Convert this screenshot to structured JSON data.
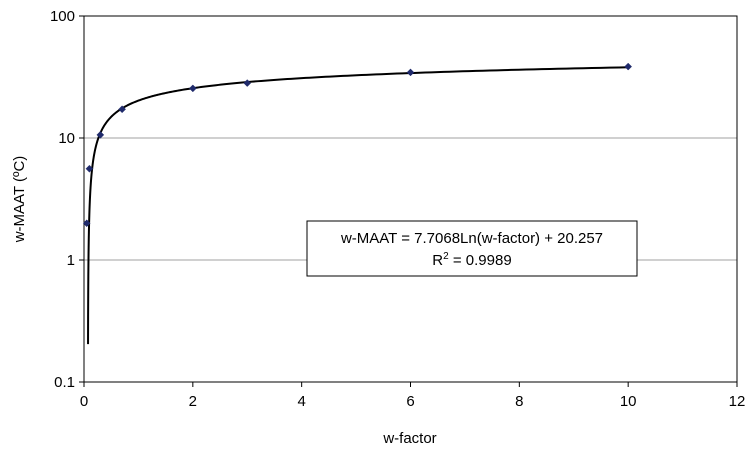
{
  "chart_data": {
    "type": "scatter",
    "scale_y": "log",
    "xlabel": "w-factor",
    "ylabel": "w-MAAT (ºC)",
    "xlim": [
      0,
      12
    ],
    "ylim": [
      0.1,
      100
    ],
    "x_ticks": [
      "0",
      "2",
      "4",
      "6",
      "8",
      "10",
      "12"
    ],
    "y_ticks": [
      "0.1",
      "1",
      "10",
      "100"
    ],
    "grid": "horizontal major gridlines",
    "points": [
      {
        "x": 0.05,
        "y": 2.0
      },
      {
        "x": 0.1,
        "y": 5.6
      },
      {
        "x": 0.3,
        "y": 10.6
      },
      {
        "x": 0.7,
        "y": 17.2
      },
      {
        "x": 2.0,
        "y": 25.5
      },
      {
        "x": 3.0,
        "y": 28.2
      },
      {
        "x": 6.0,
        "y": 34.5
      },
      {
        "x": 10.0,
        "y": 38.5
      }
    ],
    "trendline": {
      "type": "logarithmic",
      "a": 7.7068,
      "b": 20.257,
      "x_start": 0.01,
      "x_end": 10.0
    },
    "annotation": {
      "line1": "w-MAAT = 7.7068Ln(w-factor) + 20.257",
      "r2_prefix": "R",
      "r2_sup": "2",
      "r2_suffix": " = 0.9989"
    },
    "colors": {
      "marker": "#1f2a6b",
      "line": "#000000",
      "grid": "#a0a0a0"
    }
  }
}
